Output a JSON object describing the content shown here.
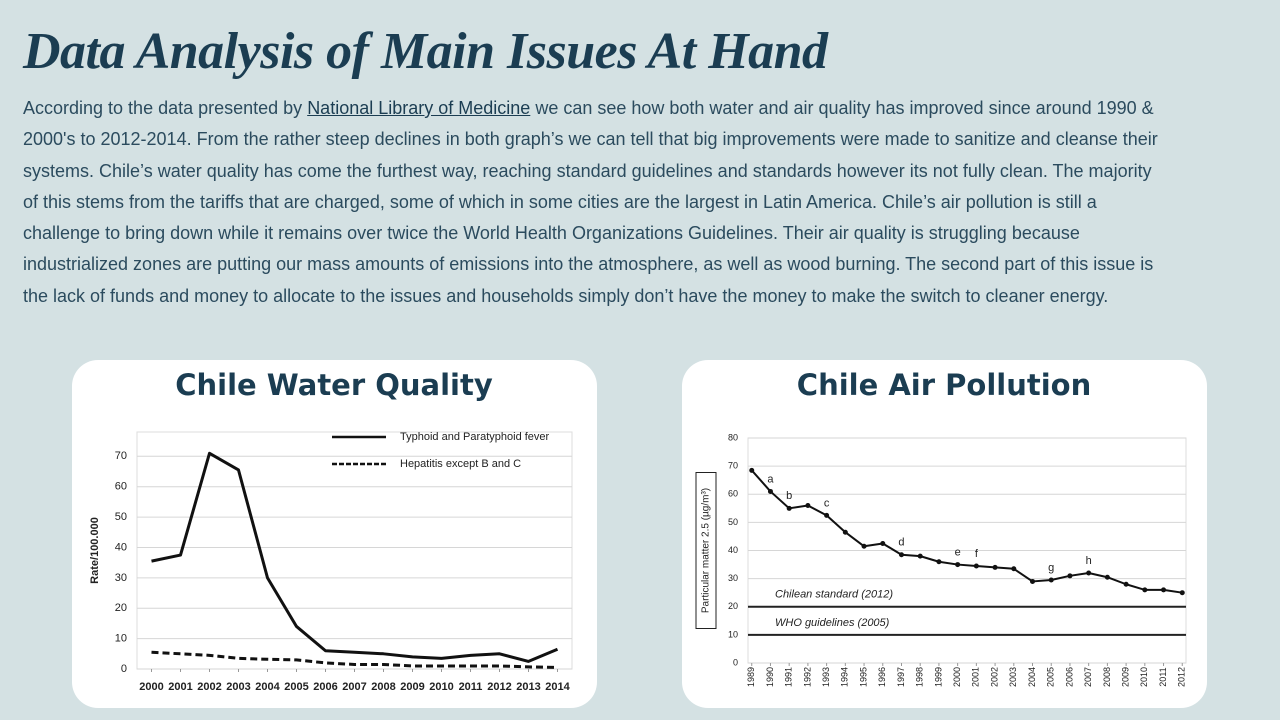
{
  "title": "Data Analysis of Main Issues At Hand",
  "paragraph": {
    "before": "According to the data presented by ",
    "link": "National Library of Medicine",
    "after": " we can see how both water and air quality has improved since around 1990 & 2000's to 2012-2014. From the rather steep declines in both graph’s we can tell that big improvements were made to sanitize and cleanse their systems. Chile’s water quality has come the furthest way, reaching standard guidelines and standards however its not fully clean. The majority of this stems from the tariffs that are charged, some of which in some cities are the largest in Latin America. Chile’s air pollution is still a challenge to bring down while it remains over twice the World Health Organizations Guidelines. Their air quality is struggling because industrialized zones are putting our mass amounts of emissions into the atmosphere, as well as wood burning. The second part of this issue is the lack of funds and money to allocate to the issues and households simply don’t have the money to make the switch to cleaner energy."
  },
  "chart_data": [
    {
      "type": "line",
      "title": "Chile Water Quality",
      "ylabel": "Rate/100.000",
      "x": [
        2000,
        2001,
        2002,
        2003,
        2004,
        2005,
        2006,
        2007,
        2008,
        2009,
        2010,
        2011,
        2012,
        2013,
        2014
      ],
      "xlim": [
        1999.5,
        2014.5
      ],
      "xticks": [
        2000,
        2001,
        2002,
        2003,
        2004,
        2005,
        2006,
        2007,
        2008,
        2009,
        2010,
        2011,
        2012,
        2013,
        2014
      ],
      "ylim": [
        0,
        78
      ],
      "yticks": [
        0,
        10,
        20,
        30,
        40,
        50,
        60,
        70
      ],
      "grid": true,
      "legend": "upper right",
      "series": [
        {
          "name": "Typhoid and Paratyphoid fever",
          "color": "#111111",
          "linestyle": "solid",
          "values": [
            35.5,
            37.5,
            71,
            65.5,
            30,
            14,
            6,
            5.5,
            5,
            4,
            3.5,
            4.5,
            5,
            2.5,
            6.5
          ]
        },
        {
          "name": "Hepatitis except B and C",
          "color": "#111111",
          "linestyle": "dashed",
          "values": [
            5.5,
            5,
            4.5,
            3.5,
            3.2,
            3,
            2,
            1.5,
            1.5,
            1,
            1,
            1,
            1,
            0.7,
            0.5
          ]
        }
      ]
    },
    {
      "type": "line",
      "title": "Chile Air Pollution",
      "ylabel": "Particular matter 2.5 (µg/m³)",
      "x": [
        1989,
        1990,
        1991,
        1992,
        1993,
        1994,
        1995,
        1996,
        1997,
        1998,
        1999,
        2000,
        2001,
        2002,
        2003,
        2004,
        2005,
        2006,
        2007,
        2008,
        2009,
        2010,
        2011,
        2012
      ],
      "xlim": [
        1988.8,
        2012.2
      ],
      "xticks": [
        1989,
        1990,
        1991,
        1992,
        1993,
        1994,
        1995,
        1996,
        1997,
        1998,
        1999,
        2000,
        2001,
        2002,
        2003,
        2004,
        2005,
        2006,
        2007,
        2008,
        2009,
        2010,
        2011,
        2012
      ],
      "xtick_rotation": 90,
      "ylim": [
        0,
        80
      ],
      "yticks": [
        0,
        10,
        20,
        30,
        40,
        50,
        60,
        70,
        80
      ],
      "grid": true,
      "series": [
        {
          "color": "#111111",
          "linestyle": "solid",
          "marker": "circle",
          "values": [
            68.5,
            61,
            55,
            56,
            52.5,
            46.5,
            41.5,
            42.5,
            38.5,
            38,
            36,
            35,
            34.5,
            34,
            33.5,
            29,
            29.5,
            31,
            32,
            30.5,
            28,
            26,
            26,
            25
          ]
        }
      ],
      "reference_lines": [
        {
          "value": 20,
          "label": "Chilean standard  (2012)"
        },
        {
          "value": 10,
          "label": "WHO guidelines (2005)"
        }
      ],
      "annotations": [
        {
          "text": "a",
          "x": 1990
        },
        {
          "text": "b",
          "x": 1991
        },
        {
          "text": "c",
          "x": 1993
        },
        {
          "text": "d",
          "x": 1997
        },
        {
          "text": "e",
          "x": 2000
        },
        {
          "text": "f",
          "x": 2001
        },
        {
          "text": "g",
          "x": 2005
        },
        {
          "text": "h",
          "x": 2007
        }
      ]
    }
  ]
}
